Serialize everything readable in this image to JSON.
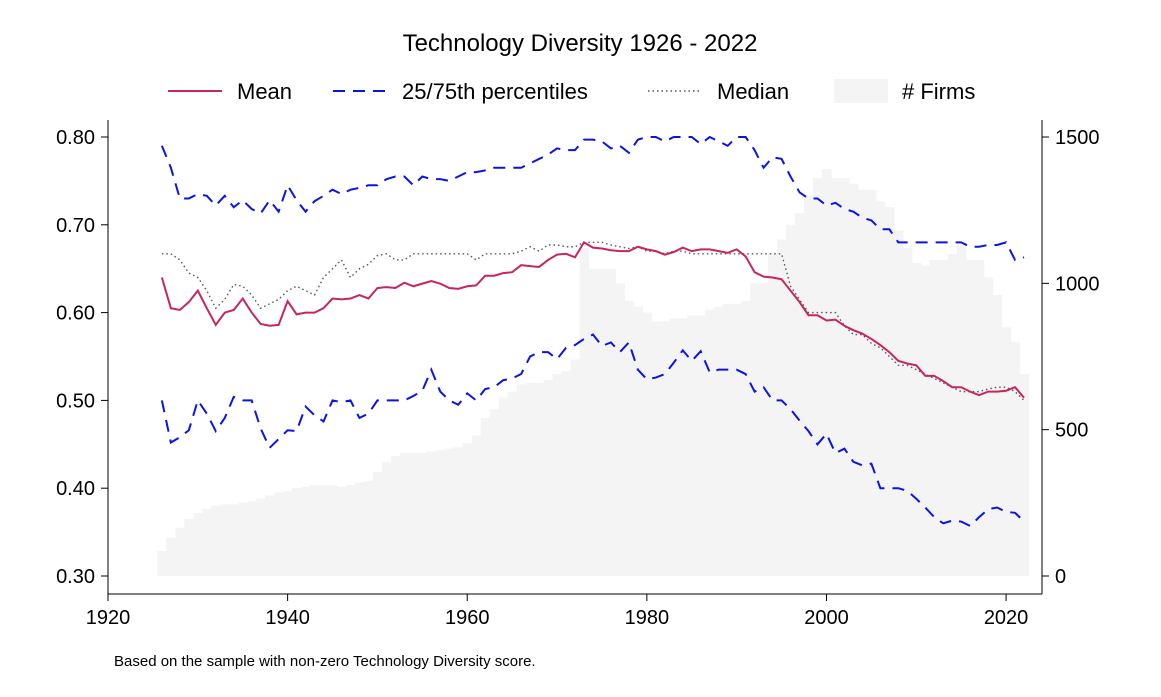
{
  "chart_data": {
    "type": "line",
    "title": "Technology Diversity 1926 - 2022",
    "note": "Based on the sample with non-zero Technology Diversity score.",
    "xlabel": "",
    "ylabel": "",
    "xlim": [
      1920,
      2024
    ],
    "ylim": [
      0.3,
      0.82
    ],
    "y2lim": [
      0,
      1530
    ],
    "x_ticks": [
      1920,
      1940,
      1960,
      1980,
      2000,
      2020
    ],
    "y_ticks": [
      0.3,
      0.4,
      0.5,
      0.6,
      0.7,
      0.8
    ],
    "y_tick_labels": [
      "0.30",
      "0.40",
      "0.50",
      "0.60",
      "0.70",
      "0.80"
    ],
    "y2_ticks": [
      0,
      500,
      1000,
      1500
    ],
    "y2_tick_labels": [
      "0",
      "500",
      "1000",
      "1500"
    ],
    "legend": {
      "position": "top",
      "items": [
        "Mean",
        "25/75th percentiles",
        "Median",
        "# Firms"
      ]
    },
    "grid": false,
    "colors": {
      "mean": "#c8265a",
      "percentiles": "#0a14e6",
      "median": "#555555",
      "firms": "#f4f4f4"
    },
    "series": [
      {
        "name": "Mean",
        "style": "solid",
        "axis": "left",
        "x": [
          1926,
          1927,
          1928,
          1929,
          1930,
          1931,
          1932,
          1933,
          1934,
          1935,
          1936,
          1937,
          1938,
          1939,
          1940,
          1941,
          1942,
          1943,
          1944,
          1945,
          1946,
          1947,
          1948,
          1949,
          1950,
          1951,
          1952,
          1953,
          1954,
          1955,
          1956,
          1957,
          1958,
          1959,
          1960,
          1961,
          1962,
          1963,
          1964,
          1965,
          1966,
          1967,
          1968,
          1969,
          1970,
          1971,
          1972,
          1973,
          1974,
          1975,
          1976,
          1977,
          1978,
          1979,
          1980,
          1981,
          1982,
          1983,
          1984,
          1985,
          1986,
          1987,
          1988,
          1989,
          1990,
          1991,
          1992,
          1993,
          1994,
          1995,
          1996,
          1997,
          1998,
          1999,
          2000,
          2001,
          2002,
          2003,
          2004,
          2005,
          2006,
          2007,
          2008,
          2009,
          2010,
          2011,
          2012,
          2013,
          2014,
          2015,
          2016,
          2017,
          2018,
          2019,
          2020,
          2021,
          2022
        ],
        "values": [
          0.64,
          0.605,
          0.603,
          0.612,
          0.625,
          0.605,
          0.586,
          0.6,
          0.603,
          0.616,
          0.6,
          0.587,
          0.585,
          0.586,
          0.613,
          0.598,
          0.6,
          0.6,
          0.605,
          0.616,
          0.615,
          0.616,
          0.62,
          0.616,
          0.628,
          0.629,
          0.628,
          0.634,
          0.63,
          0.633,
          0.636,
          0.633,
          0.628,
          0.627,
          0.63,
          0.631,
          0.642,
          0.642,
          0.645,
          0.646,
          0.654,
          0.653,
          0.652,
          0.66,
          0.666,
          0.667,
          0.663,
          0.68,
          0.674,
          0.673,
          0.671,
          0.67,
          0.67,
          0.675,
          0.672,
          0.67,
          0.666,
          0.669,
          0.674,
          0.67,
          0.672,
          0.672,
          0.67,
          0.668,
          0.672,
          0.664,
          0.646,
          0.641,
          0.64,
          0.638,
          0.625,
          0.612,
          0.597,
          0.597,
          0.591,
          0.592,
          0.585,
          0.58,
          0.576,
          0.57,
          0.563,
          0.555,
          0.545,
          0.542,
          0.54,
          0.528,
          0.528,
          0.522,
          0.515,
          0.515,
          0.51,
          0.506,
          0.51,
          0.51,
          0.511,
          0.515,
          0.503
        ]
      },
      {
        "name": "25/75th percentiles",
        "style": "dashed",
        "axis": "left",
        "x": [
          1926,
          1927,
          1928,
          1929,
          1930,
          1931,
          1932,
          1933,
          1934,
          1935,
          1936,
          1937,
          1938,
          1939,
          1940,
          1941,
          1942,
          1943,
          1944,
          1945,
          1946,
          1947,
          1948,
          1949,
          1950,
          1951,
          1952,
          1953,
          1954,
          1955,
          1956,
          1957,
          1958,
          1959,
          1960,
          1961,
          1962,
          1963,
          1964,
          1965,
          1966,
          1967,
          1968,
          1969,
          1970,
          1971,
          1972,
          1973,
          1974,
          1975,
          1976,
          1977,
          1978,
          1979,
          1980,
          1981,
          1982,
          1983,
          1984,
          1985,
          1986,
          1987,
          1988,
          1989,
          1990,
          1991,
          1992,
          1993,
          1994,
          1995,
          1996,
          1997,
          1998,
          1999,
          2000,
          2001,
          2002,
          2003,
          2004,
          2005,
          2006,
          2007,
          2008,
          2009,
          2010,
          2011,
          2012,
          2013,
          2014,
          2015,
          2016,
          2017,
          2018,
          2019,
          2020,
          2021,
          2022
        ],
        "values": [
          0.79,
          0.765,
          0.73,
          0.73,
          0.735,
          0.733,
          0.722,
          0.733,
          0.72,
          0.728,
          0.718,
          0.713,
          0.728,
          0.715,
          0.745,
          0.728,
          0.715,
          0.727,
          0.733,
          0.74,
          0.735,
          0.74,
          0.742,
          0.745,
          0.745,
          0.752,
          0.755,
          0.755,
          0.745,
          0.755,
          0.752,
          0.752,
          0.75,
          0.755,
          0.76,
          0.76,
          0.762,
          0.765,
          0.765,
          0.765,
          0.765,
          0.77,
          0.775,
          0.78,
          0.787,
          0.785,
          0.785,
          0.797,
          0.797,
          0.795,
          0.787,
          0.79,
          0.782,
          0.797,
          0.8,
          0.8,
          0.795,
          0.8,
          0.8,
          0.8,
          0.792,
          0.8,
          0.795,
          0.79,
          0.8,
          0.8,
          0.785,
          0.765,
          0.777,
          0.775,
          0.755,
          0.737,
          0.73,
          0.73,
          0.722,
          0.725,
          0.718,
          0.715,
          0.708,
          0.705,
          0.695,
          0.695,
          0.68,
          0.68,
          0.68,
          0.68,
          0.68,
          0.68,
          0.68,
          0.68,
          0.675,
          0.675,
          0.677,
          0.677,
          0.68,
          0.66,
          0.663
        ],
        "lower_values": [
          0.5,
          0.452,
          0.458,
          0.466,
          0.5,
          0.485,
          0.465,
          0.48,
          0.504,
          0.5,
          0.5,
          0.468,
          0.446,
          0.456,
          0.466,
          0.465,
          0.493,
          0.483,
          0.476,
          0.5,
          0.498,
          0.5,
          0.48,
          0.485,
          0.5,
          0.5,
          0.5,
          0.5,
          0.505,
          0.511,
          0.535,
          0.51,
          0.5,
          0.495,
          0.508,
          0.5,
          0.513,
          0.515,
          0.523,
          0.525,
          0.53,
          0.55,
          0.555,
          0.555,
          0.547,
          0.56,
          0.563,
          0.57,
          0.575,
          0.562,
          0.566,
          0.555,
          0.566,
          0.535,
          0.524,
          0.526,
          0.53,
          0.543,
          0.557,
          0.545,
          0.556,
          0.532,
          0.535,
          0.535,
          0.535,
          0.53,
          0.51,
          0.515,
          0.5,
          0.5,
          0.49,
          0.477,
          0.465,
          0.45,
          0.462,
          0.44,
          0.445,
          0.43,
          0.426,
          0.428,
          0.4,
          0.4,
          0.4,
          0.397,
          0.388,
          0.378,
          0.367,
          0.36,
          0.363,
          0.362,
          0.357,
          0.367,
          0.376,
          0.378,
          0.373,
          0.372,
          0.362
        ]
      },
      {
        "name": "Median",
        "style": "dotted",
        "axis": "left",
        "x": [
          1926,
          1927,
          1928,
          1929,
          1930,
          1931,
          1932,
          1933,
          1934,
          1935,
          1936,
          1937,
          1938,
          1939,
          1940,
          1941,
          1942,
          1943,
          1944,
          1945,
          1946,
          1947,
          1948,
          1949,
          1950,
          1951,
          1952,
          1953,
          1954,
          1955,
          1956,
          1957,
          1958,
          1959,
          1960,
          1961,
          1962,
          1963,
          1964,
          1965,
          1966,
          1967,
          1968,
          1969,
          1970,
          1971,
          1972,
          1973,
          1974,
          1975,
          1976,
          1977,
          1978,
          1979,
          1980,
          1981,
          1982,
          1983,
          1984,
          1985,
          1986,
          1987,
          1988,
          1989,
          1990,
          1991,
          1992,
          1993,
          1994,
          1995,
          1996,
          1997,
          1998,
          1999,
          2000,
          2001,
          2002,
          2003,
          2004,
          2005,
          2006,
          2007,
          2008,
          2009,
          2010,
          2011,
          2012,
          2013,
          2014,
          2015,
          2016,
          2017,
          2018,
          2019,
          2020,
          2021,
          2022
        ],
        "values": [
          0.667,
          0.667,
          0.66,
          0.645,
          0.64,
          0.625,
          0.605,
          0.615,
          0.632,
          0.63,
          0.62,
          0.605,
          0.61,
          0.615,
          0.625,
          0.63,
          0.625,
          0.62,
          0.64,
          0.65,
          0.66,
          0.64,
          0.65,
          0.655,
          0.665,
          0.667,
          0.66,
          0.66,
          0.667,
          0.667,
          0.667,
          0.667,
          0.667,
          0.667,
          0.667,
          0.66,
          0.667,
          0.667,
          0.667,
          0.667,
          0.67,
          0.675,
          0.67,
          0.677,
          0.677,
          0.675,
          0.675,
          0.68,
          0.68,
          0.68,
          0.677,
          0.675,
          0.673,
          0.675,
          0.67,
          0.67,
          0.667,
          0.67,
          0.67,
          0.667,
          0.667,
          0.667,
          0.667,
          0.667,
          0.667,
          0.667,
          0.667,
          0.667,
          0.667,
          0.667,
          0.63,
          0.615,
          0.6,
          0.6,
          0.6,
          0.6,
          0.585,
          0.575,
          0.575,
          0.565,
          0.56,
          0.55,
          0.54,
          0.54,
          0.535,
          0.53,
          0.525,
          0.52,
          0.515,
          0.51,
          0.51,
          0.51,
          0.513,
          0.515,
          0.515,
          0.51,
          0.5
        ]
      },
      {
        "name": "# Firms",
        "type": "area",
        "axis": "right",
        "x": [
          1926,
          1927,
          1928,
          1929,
          1930,
          1931,
          1932,
          1933,
          1934,
          1935,
          1936,
          1937,
          1938,
          1939,
          1940,
          1941,
          1942,
          1943,
          1944,
          1945,
          1946,
          1947,
          1948,
          1949,
          1950,
          1951,
          1952,
          1953,
          1954,
          1955,
          1956,
          1957,
          1958,
          1959,
          1960,
          1961,
          1962,
          1963,
          1964,
          1965,
          1966,
          1967,
          1968,
          1969,
          1970,
          1971,
          1972,
          1973,
          1974,
          1975,
          1976,
          1977,
          1978,
          1979,
          1980,
          1981,
          1982,
          1983,
          1984,
          1985,
          1986,
          1987,
          1988,
          1989,
          1990,
          1991,
          1992,
          1993,
          1994,
          1995,
          1996,
          1997,
          1998,
          1999,
          2000,
          2001,
          2002,
          2003,
          2004,
          2005,
          2006,
          2007,
          2008,
          2009,
          2010,
          2011,
          2012,
          2013,
          2014,
          2015,
          2016,
          2017,
          2018,
          2019,
          2020,
          2021,
          2022
        ],
        "values": [
          85,
          130,
          165,
          195,
          215,
          230,
          240,
          245,
          245,
          250,
          255,
          265,
          275,
          285,
          290,
          300,
          305,
          310,
          310,
          310,
          305,
          310,
          320,
          325,
          355,
          390,
          410,
          420,
          420,
          420,
          425,
          430,
          435,
          440,
          455,
          480,
          540,
          570,
          610,
          630,
          655,
          660,
          660,
          670,
          690,
          700,
          740,
          1120,
          1050,
          1050,
          1050,
          1000,
          940,
          920,
          900,
          870,
          870,
          880,
          880,
          890,
          890,
          910,
          920,
          930,
          930,
          940,
          1000,
          1000,
          1100,
          1150,
          1200,
          1240,
          1300,
          1360,
          1390,
          1360,
          1360,
          1340,
          1320,
          1320,
          1280,
          1260,
          1180,
          1120,
          1070,
          1060,
          1080,
          1080,
          1100,
          1130,
          1080,
          1080,
          1020,
          960,
          850,
          800,
          690
        ]
      }
    ]
  }
}
